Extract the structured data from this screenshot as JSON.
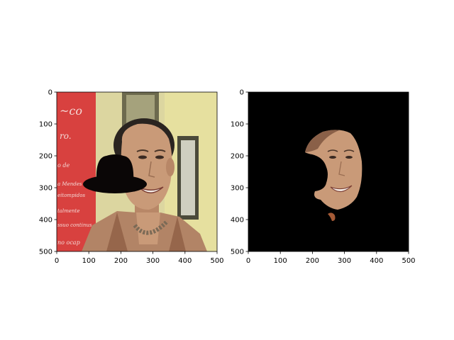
{
  "figure": {
    "panels": [
      {
        "name": "left-panel",
        "description_visible": "photo of smiling woman with black hat overlay",
        "xticks": [
          "0",
          "100",
          "200",
          "300",
          "400",
          "500"
        ],
        "yticks": [
          "0",
          "100",
          "200",
          "300",
          "400",
          "500"
        ],
        "background_text": [
          "~co",
          "ro.",
          "o de",
          "a Mendes",
          "eitompidos",
          "talmente",
          "ssuo continus",
          "no ocap"
        ]
      },
      {
        "name": "right-panel",
        "description_visible": "segmented face on black background",
        "xticks": [
          "0",
          "100",
          "200",
          "300",
          "400",
          "500"
        ],
        "yticks": [
          "0",
          "100",
          "200",
          "300",
          "400",
          "500"
        ]
      }
    ],
    "colors": {
      "wall": "#dcd6a0",
      "poster_red": "#d8413f",
      "skin": "#c99a78",
      "hair": "#2a2420",
      "jacket": "#b28466",
      "hat": "#0a0606",
      "mask_bg": "#000000"
    }
  }
}
